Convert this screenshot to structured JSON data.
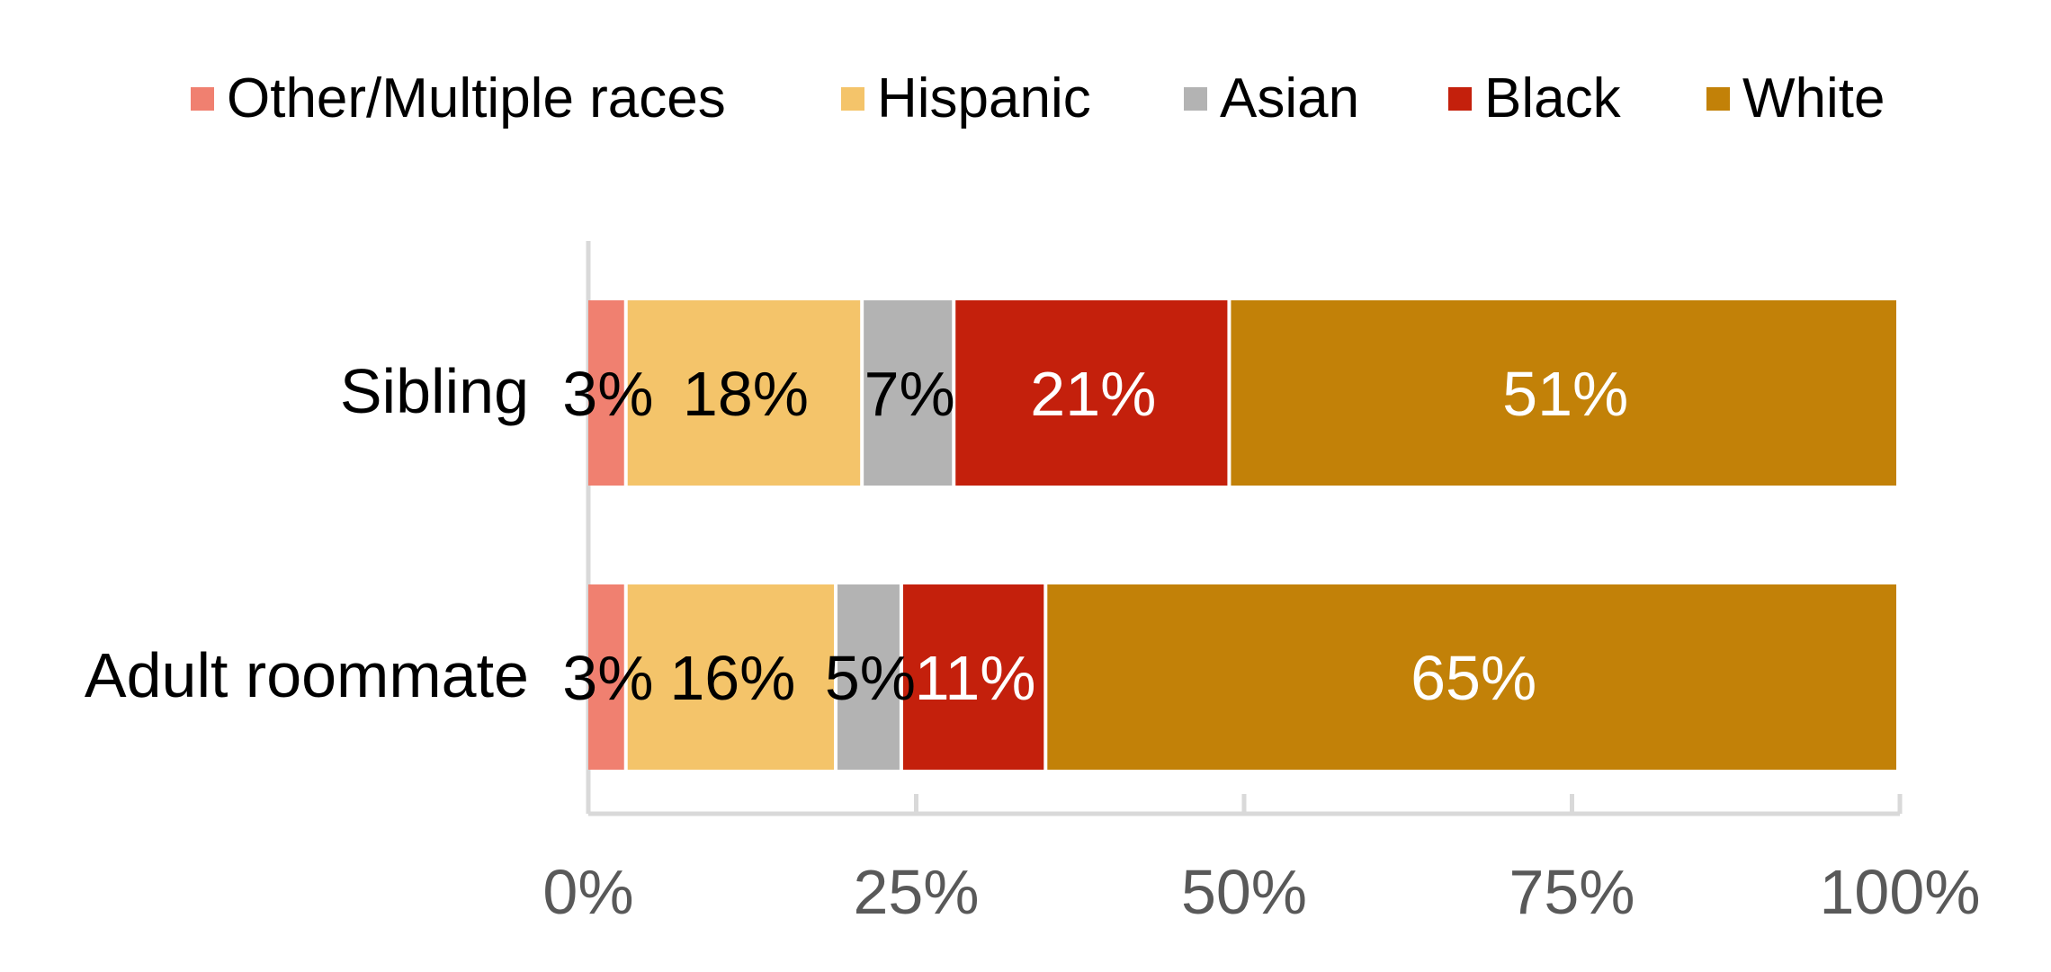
{
  "chart_data": {
    "type": "bar",
    "orientation": "horizontal",
    "stacked": true,
    "categories": [
      "Sibling",
      "Adult roommate"
    ],
    "series": [
      {
        "name": "Other/Multiple races",
        "color": "#F08070",
        "values": [
          3,
          3
        ],
        "labels": [
          "3%",
          "3%"
        ],
        "label_color": "#000000"
      },
      {
        "name": "Hispanic",
        "color": "#F4C46A",
        "values": [
          18,
          16
        ],
        "labels": [
          "18%",
          "16%"
        ],
        "label_color": "#000000"
      },
      {
        "name": "Asian",
        "color": "#B3B3B3",
        "values": [
          7,
          5
        ],
        "labels": [
          "7%",
          "5%"
        ],
        "label_color": "#000000"
      },
      {
        "name": "Black",
        "color": "#C4200C",
        "values": [
          21,
          11
        ],
        "labels": [
          "21%",
          "11%"
        ],
        "label_color": "#ffffff"
      },
      {
        "name": "White",
        "color": "#C28108",
        "values": [
          51,
          65
        ],
        "labels": [
          "51%",
          "65%"
        ],
        "label_color": "#ffffff"
      }
    ],
    "xlim": [
      0,
      100
    ],
    "x_ticks": [
      0,
      25,
      50,
      75,
      100
    ],
    "x_tick_labels": [
      "0%",
      "25%",
      "50%",
      "75%",
      "100%"
    ],
    "title": "",
    "xlabel": "",
    "ylabel": "",
    "legend_position": "top",
    "grid": false,
    "axis_color": "#D9D9D9",
    "tick_label_color": "#595959"
  }
}
